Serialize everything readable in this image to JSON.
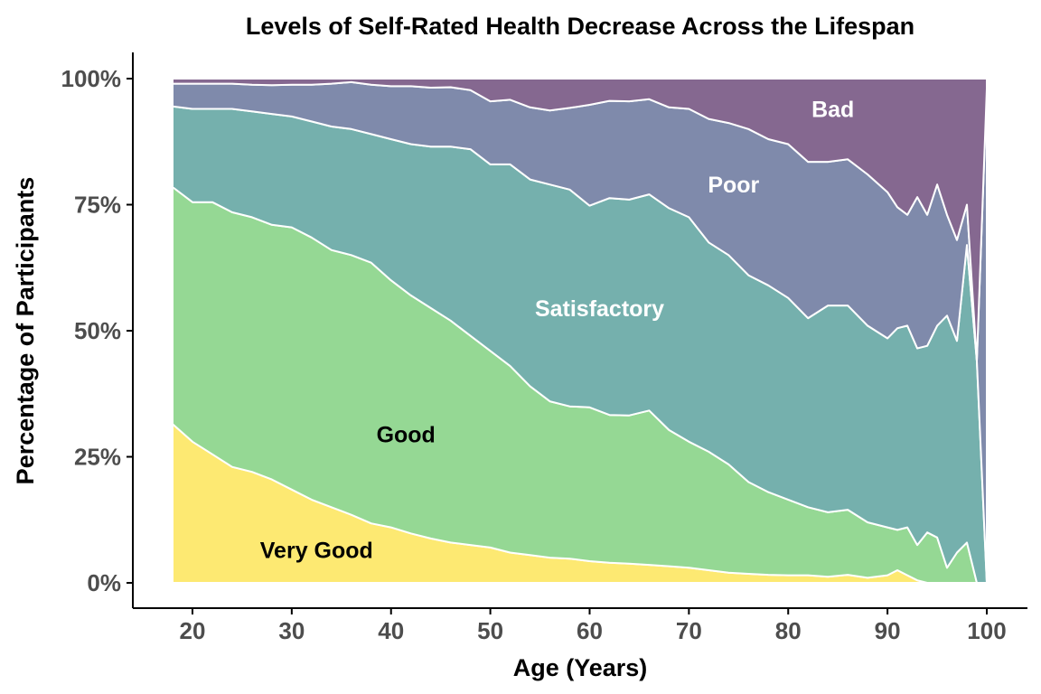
{
  "chart_data": {
    "type": "area",
    "stacked": true,
    "normalized": true,
    "title": "Levels of Self-Rated Health Decrease Across the Lifespan",
    "xlabel": "Age (Years)",
    "ylabel": "Percentage of Participants",
    "xlim": [
      18,
      100
    ],
    "ylim": [
      0,
      100
    ],
    "x_ticks": [
      20,
      30,
      40,
      50,
      60,
      70,
      80,
      90,
      100
    ],
    "y_ticks": [
      0,
      25,
      50,
      75,
      100
    ],
    "y_tick_labels": [
      "0%",
      "25%",
      "50%",
      "75%",
      "100%"
    ],
    "grid": false,
    "legend": "none",
    "area_outline_color": "#ffffff",
    "x": [
      18,
      20,
      22,
      24,
      26,
      28,
      30,
      32,
      34,
      36,
      38,
      40,
      42,
      44,
      46,
      48,
      50,
      52,
      54,
      56,
      58,
      60,
      62,
      64,
      66,
      68,
      70,
      72,
      74,
      76,
      78,
      80,
      82,
      84,
      86,
      88,
      90,
      91,
      92,
      93,
      94,
      95,
      96,
      97,
      98,
      99,
      100
    ],
    "series": [
      {
        "name": "Very Good",
        "color": "#fde972",
        "label_color": "#000000",
        "label_at": [
          32.5,
          6.5
        ],
        "values": [
          31.5,
          28,
          25.5,
          23,
          22,
          20.5,
          18.5,
          16.5,
          15,
          13.5,
          11.8,
          11,
          9.8,
          8.8,
          8,
          7.5,
          7,
          6,
          5.5,
          5,
          4.8,
          4.3,
          4,
          3.8,
          3.5,
          3.3,
          3,
          2.5,
          2,
          1.8,
          1.6,
          1.5,
          1.5,
          1.2,
          1.6,
          1,
          1.5,
          2.5,
          1.5,
          0.5,
          0,
          0,
          0,
          0,
          0,
          0,
          0
        ]
      },
      {
        "name": "Good",
        "color": "#95d894",
        "label_color": "#000000",
        "label_at": [
          41.5,
          29.5
        ],
        "values": [
          47,
          47.5,
          50,
          50.5,
          50.5,
          50.5,
          52,
          52,
          51,
          51.5,
          51.7,
          49,
          47.2,
          45.7,
          44,
          41.5,
          39,
          37,
          33.5,
          31,
          30.2,
          30.5,
          29.3,
          29.4,
          30,
          27,
          25,
          23.5,
          21.5,
          18.2,
          16.4,
          15,
          13.5,
          12.8,
          12.9,
          11,
          9.5,
          8,
          9.5,
          7,
          10,
          9,
          3,
          6,
          8,
          0,
          0
        ]
      },
      {
        "name": "Satisfactory",
        "color": "#75b0ad",
        "label_color": "#ffffff",
        "label_at": [
          61,
          54.5
        ],
        "values": [
          16,
          18.5,
          18.5,
          20.5,
          21,
          22,
          22,
          23,
          24.5,
          25,
          25.5,
          28,
          30,
          32,
          34.5,
          37,
          37,
          40,
          41,
          43,
          43,
          40,
          43,
          42.8,
          42,
          44,
          44.5,
          41.5,
          41.5,
          41,
          41,
          40,
          37.5,
          41,
          40.5,
          39,
          37.5,
          40,
          40,
          39,
          37,
          42,
          50,
          42,
          59,
          44,
          0
        ]
      },
      {
        "name": "Poor",
        "color": "#7f8aab",
        "label_color": "#ffffff",
        "label_at": [
          74.5,
          79
        ],
        "values": [
          4.5,
          5,
          5,
          5,
          5.3,
          5.7,
          6.3,
          7.3,
          8.5,
          9.3,
          9.8,
          10.5,
          11.5,
          11.7,
          11.8,
          11.7,
          12.5,
          12.8,
          14.3,
          14.7,
          16.2,
          20,
          19.3,
          19.5,
          18.5,
          20,
          21.5,
          24.5,
          26.2,
          29,
          29,
          30.5,
          31,
          28.5,
          29,
          30,
          29,
          24,
          22,
          30,
          26,
          28,
          20,
          20,
          8,
          0,
          98
        ]
      },
      {
        "name": "Bad",
        "color": "#856890",
        "label_color": "#ffffff",
        "label_at": [
          84.5,
          94
        ],
        "values": [
          1,
          1,
          1,
          1,
          1.2,
          1.3,
          1.2,
          1.2,
          1,
          0.7,
          1.2,
          1.5,
          1.5,
          1.8,
          1.7,
          2.3,
          4.5,
          4.2,
          5.7,
          6.3,
          5.8,
          5.2,
          4.4,
          4.5,
          4,
          5.7,
          6,
          8,
          8.8,
          10,
          12,
          13,
          16.5,
          16.5,
          16,
          19,
          22.5,
          25.5,
          27,
          23.5,
          27,
          21,
          27,
          32,
          25,
          56,
          2
        ]
      }
    ]
  }
}
